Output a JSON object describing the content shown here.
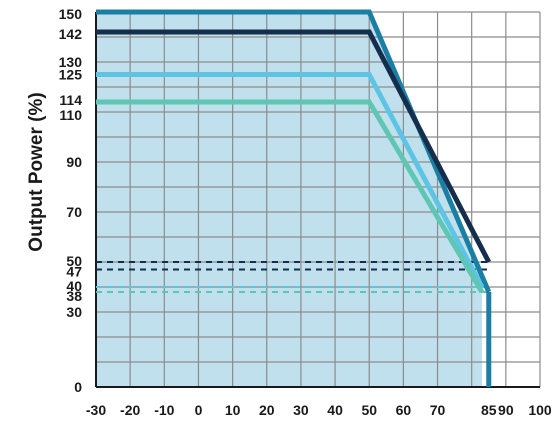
{
  "chart_data": {
    "type": "line",
    "title": "",
    "xlabel": "",
    "ylabel": "Output Power (%)",
    "xlim": [
      -30,
      100
    ],
    "ylim": [
      0,
      150
    ],
    "grid": true,
    "x_ticks": [
      "-30",
      "-20",
      "-10",
      "0",
      "10",
      "20",
      "30",
      "40",
      "50",
      "60",
      "70",
      "85",
      "90",
      "100"
    ],
    "y_ticks": [
      "0",
      "30",
      "38",
      "40",
      "47",
      "50",
      "70",
      "90",
      "110",
      "114",
      "125",
      "130",
      "142",
      "150"
    ],
    "shaded_region": {
      "fill": "#bfe0ec",
      "x": [
        -30,
        50,
        83
      ],
      "y": [
        150,
        150,
        47
      ]
    },
    "series": [
      {
        "color": "#1b7ea3",
        "style": "solid",
        "x": [
          -30,
          50,
          85
        ],
        "y": [
          150,
          150,
          38
        ]
      },
      {
        "color": "#152e4c",
        "style": "solid",
        "x": [
          -30,
          50,
          85
        ],
        "y": [
          142,
          142,
          50
        ]
      },
      {
        "color": "#5ec4e4",
        "style": "solid",
        "x": [
          -30,
          50,
          83
        ],
        "y": [
          125,
          125,
          40
        ]
      },
      {
        "color": "#5ec6b2",
        "style": "solid",
        "x": [
          -30,
          50,
          83
        ],
        "y": [
          114,
          114,
          38
        ]
      },
      {
        "color": "#152e4c",
        "style": "dashed",
        "x": [
          -30,
          85
        ],
        "y": [
          50,
          50
        ]
      },
      {
        "color": "#152e4c",
        "style": "dashed",
        "x": [
          -30,
          85
        ],
        "y": [
          47,
          47
        ]
      },
      {
        "color": "#5ec4e4",
        "style": "dashed",
        "x": [
          -30,
          85
        ],
        "y": [
          40,
          40
        ]
      },
      {
        "color": "#5ec6b2",
        "style": "dashed",
        "x": [
          -30,
          85
        ],
        "y": [
          38,
          38
        ]
      }
    ],
    "x_tick_values": [
      -30,
      -20,
      -10,
      0,
      10,
      20,
      30,
      40,
      50,
      60,
      70,
      85,
      90,
      100
    ],
    "y_tick_values": [
      0,
      30,
      38,
      40,
      47,
      50,
      70,
      90,
      110,
      114,
      125,
      130,
      142,
      150
    ]
  }
}
